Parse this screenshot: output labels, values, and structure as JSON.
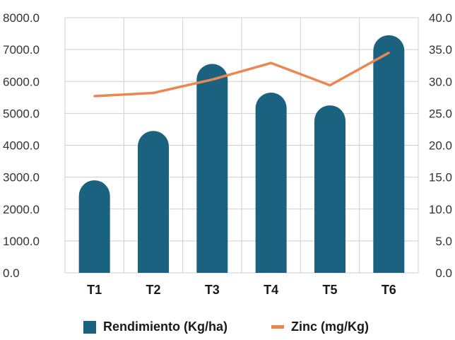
{
  "chart_data": {
    "type": "bar",
    "categories": [
      "T1",
      "T2",
      "T3",
      "T4",
      "T5",
      "T6"
    ],
    "series": [
      {
        "name": "Rendimiento (Kg/ha)",
        "type": "bar",
        "axis": "left",
        "values": [
          2900,
          4450,
          6550,
          5650,
          5250,
          7450
        ]
      },
      {
        "name": "Zinc (mg/Kg)",
        "type": "line",
        "axis": "right",
        "values": [
          27.7,
          28.2,
          30.3,
          32.9,
          29.4,
          34.5
        ]
      }
    ],
    "left_axis": {
      "ylim": [
        0,
        8000
      ],
      "ticks": [
        "0.0",
        "1000.0",
        "2000.0",
        "3000.0",
        "4000.0",
        "5000.0",
        "6000.0",
        "7000.0",
        "8000.0"
      ]
    },
    "right_axis": {
      "ylim": [
        0,
        40
      ],
      "ticks": [
        "0.0",
        "5.0",
        "10.0",
        "15.0",
        "20.0",
        "25.0",
        "30.0",
        "35.0",
        "40.0"
      ]
    },
    "grid": true,
    "legend_position": "bottom",
    "colors": {
      "bar": "#1b6281",
      "line": "#ec8752",
      "grid": "#cfcfcf"
    }
  }
}
